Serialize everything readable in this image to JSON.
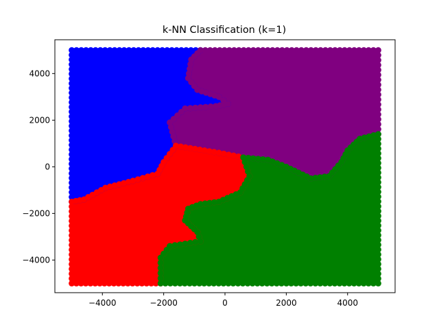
{
  "chart_data": {
    "type": "scatter",
    "title": "k-NN Classification (k=1)",
    "xlabel": "",
    "ylabel": "",
    "xlim": [
      -5550,
      5550
    ],
    "ylim": [
      -5400,
      5450
    ],
    "xticks": [
      -4000,
      -2000,
      0,
      2000,
      4000
    ],
    "yticks": [
      -4000,
      -2000,
      0,
      2000,
      4000
    ],
    "xtick_labels": [
      "−4000",
      "−2000",
      "0",
      "2000",
      "4000"
    ],
    "ytick_labels": [
      "−4000",
      "−2000",
      "0",
      "2000",
      "4000"
    ],
    "grid": false,
    "legend": "none",
    "point_domain": {
      "x": [
        -5000,
        5000
      ],
      "y": [
        -5000,
        5000
      ]
    },
    "series": [
      {
        "color": "#0000ff",
        "region": [
          [
            -5000,
            5000
          ],
          [
            -800,
            5000
          ],
          [
            -1100,
            4600
          ],
          [
            -1200,
            3800
          ],
          [
            -900,
            3300
          ],
          [
            -200,
            3000
          ],
          [
            100,
            2700
          ],
          [
            -300,
            2600
          ],
          [
            -1300,
            2500
          ],
          [
            -1800,
            1900
          ],
          [
            -1600,
            900
          ],
          [
            -2000,
            200
          ],
          [
            -2200,
            -300
          ],
          [
            -3000,
            -600
          ],
          [
            -3900,
            -900
          ],
          [
            -4600,
            -1400
          ],
          [
            -5000,
            -1500
          ]
        ]
      },
      {
        "color": "#800080",
        "region": [
          [
            -800,
            5000
          ],
          [
            5000,
            5000
          ],
          [
            5000,
            1400
          ],
          [
            4400,
            1200
          ],
          [
            4000,
            700
          ],
          [
            3800,
            200
          ],
          [
            3400,
            -400
          ],
          [
            2800,
            -500
          ],
          [
            2000,
            0
          ],
          [
            1400,
            300
          ],
          [
            600,
            400
          ],
          [
            -200,
            600
          ],
          [
            -1600,
            900
          ],
          [
            -1800,
            1900
          ],
          [
            -1300,
            2500
          ],
          [
            -300,
            2600
          ],
          [
            100,
            2700
          ],
          [
            -200,
            3000
          ],
          [
            -900,
            3300
          ],
          [
            -1200,
            3800
          ],
          [
            -1100,
            4600
          ]
        ]
      },
      {
        "color": "#ff0000",
        "region": [
          [
            -5000,
            -1500
          ],
          [
            -4600,
            -1400
          ],
          [
            -3900,
            -900
          ],
          [
            -3000,
            -600
          ],
          [
            -2200,
            -300
          ],
          [
            -2000,
            200
          ],
          [
            -1600,
            900
          ],
          [
            -200,
            600
          ],
          [
            600,
            400
          ],
          [
            800,
            -400
          ],
          [
            500,
            -1100
          ],
          [
            -200,
            -1500
          ],
          [
            -800,
            -1600
          ],
          [
            -1200,
            -1800
          ],
          [
            -1300,
            -2300
          ],
          [
            -900,
            -2800
          ],
          [
            -800,
            -3200
          ],
          [
            -1800,
            -3400
          ],
          [
            -2100,
            -3900
          ],
          [
            -2100,
            -5000
          ],
          [
            -5000,
            -5000
          ]
        ]
      },
      {
        "color": "#008000",
        "region": [
          [
            -2100,
            -5000
          ],
          [
            -2100,
            -3900
          ],
          [
            -1800,
            -3400
          ],
          [
            -800,
            -3200
          ],
          [
            -900,
            -2800
          ],
          [
            -1300,
            -2300
          ],
          [
            -1200,
            -1800
          ],
          [
            -800,
            -1600
          ],
          [
            -200,
            -1500
          ],
          [
            500,
            -1100
          ],
          [
            800,
            -400
          ],
          [
            600,
            400
          ],
          [
            1400,
            300
          ],
          [
            2000,
            0
          ],
          [
            2800,
            -500
          ],
          [
            3400,
            -400
          ],
          [
            3800,
            200
          ],
          [
            4000,
            700
          ],
          [
            4400,
            1200
          ],
          [
            5000,
            1400
          ],
          [
            5000,
            -5000
          ]
        ]
      }
    ]
  }
}
